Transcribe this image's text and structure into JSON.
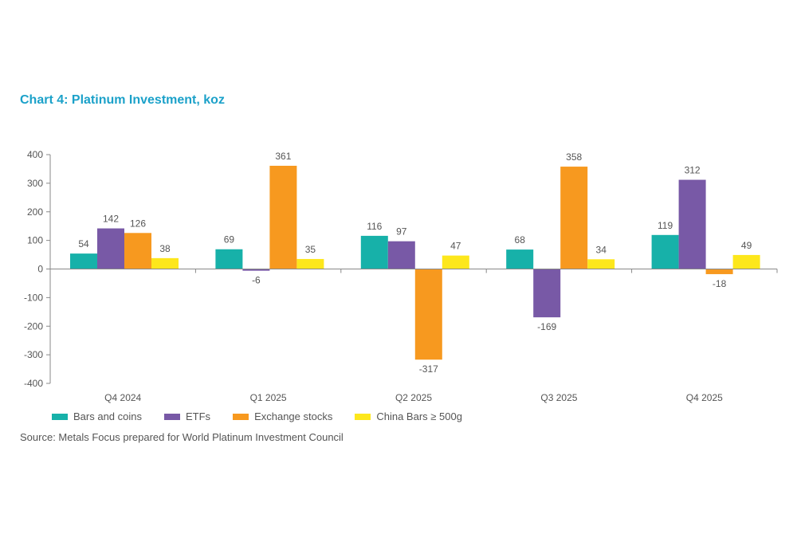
{
  "chart_data": {
    "type": "bar",
    "title": "Chart 4: Platinum Investment, koz",
    "categories": [
      "Q4 2024",
      "Q1 2025",
      "Q2 2025",
      "Q3 2025",
      "Q4 2025"
    ],
    "series": [
      {
        "name": "Bars and coins",
        "color": "#17b1a9",
        "values": [
          54,
          69,
          116,
          68,
          119
        ]
      },
      {
        "name": "ETFs",
        "color": "#7859a6",
        "values": [
          142,
          -6,
          97,
          -169,
          312
        ]
      },
      {
        "name": "Exchange stocks",
        "color": "#f7991f",
        "values": [
          126,
          361,
          -317,
          358,
          -18
        ]
      },
      {
        "name": "China Bars ≥ 500g",
        "color": "#fde71c",
        "values": [
          38,
          35,
          47,
          34,
          49
        ]
      }
    ],
    "ylim": [
      -400,
      400
    ],
    "yticks": [
      400,
      300,
      200,
      100,
      0,
      -100,
      -200,
      -300,
      -400
    ],
    "grid": false,
    "legend": "bottom",
    "source": "Source: Metals Focus prepared for World Platinum Investment Council"
  }
}
